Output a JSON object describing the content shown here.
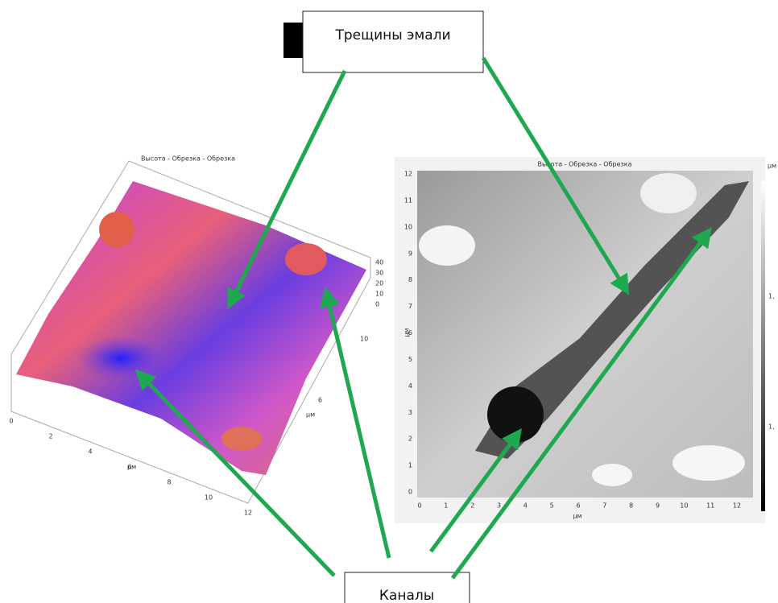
{
  "callouts": {
    "top": "Трещины эмали",
    "bottom": "Каналы"
  },
  "left_plot": {
    "title": "Высота - Обрезка - Обрезка",
    "x_ticks": [
      0,
      2,
      4,
      6,
      8,
      10,
      12
    ],
    "x_unit": "μм",
    "y_ticks": [
      6,
      10
    ],
    "y_unit": "μм",
    "z_ticks": [
      40,
      30,
      20,
      10,
      0
    ]
  },
  "right_plot": {
    "title": "Высота - Обрезка - Обрезка",
    "x_ticks": [
      0,
      1,
      2,
      3,
      4,
      5,
      6,
      7,
      8,
      9,
      10,
      11,
      12
    ],
    "x_unit": "μм",
    "y_ticks": [
      0,
      1,
      2,
      3,
      4,
      5,
      6,
      7,
      8,
      9,
      10,
      11,
      12
    ],
    "y_unit": "μм",
    "colorbar": {
      "unit": "μм",
      "labels": [
        "1,",
        "1,"
      ]
    }
  }
}
